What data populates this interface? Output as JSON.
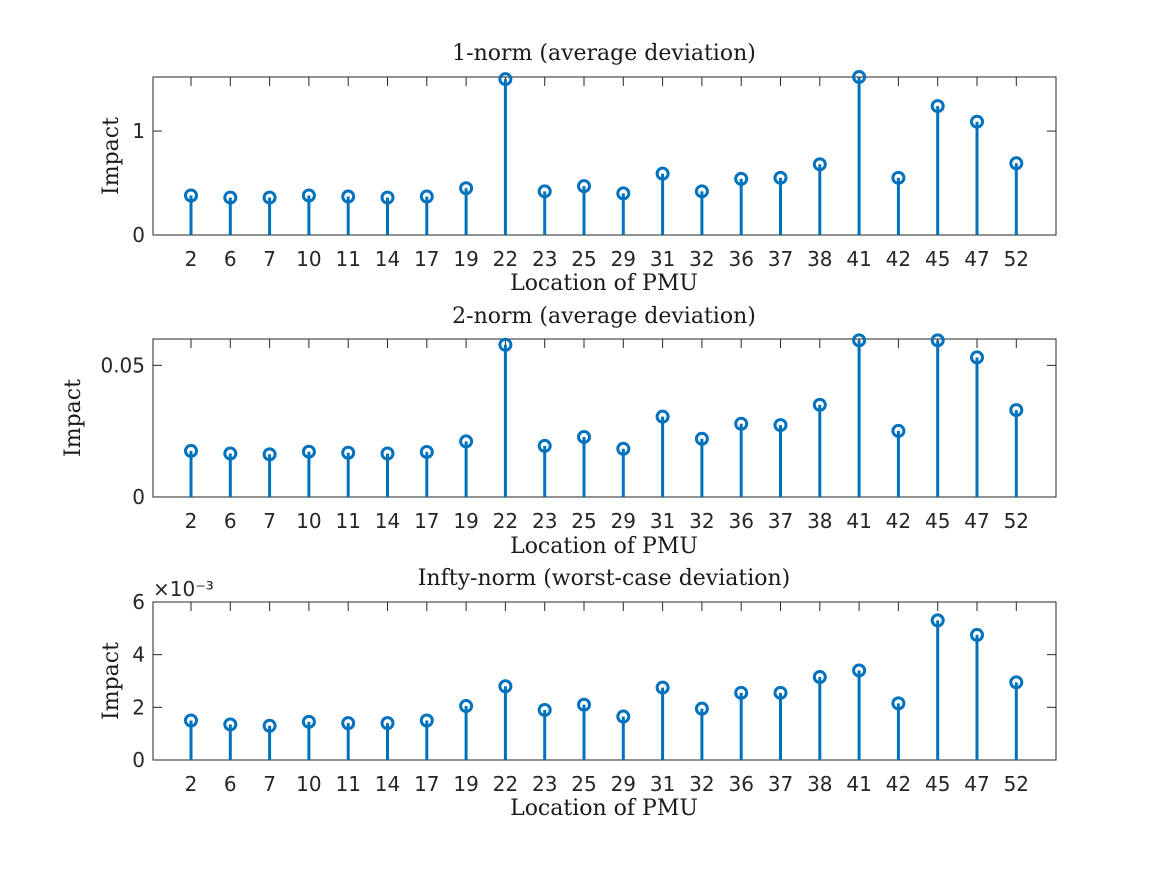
{
  "colors": {
    "series": "#0072bd",
    "axes": "#262626"
  },
  "chart_data": [
    {
      "type": "stem",
      "title": "1-norm (average deviation)",
      "xlabel": "Location of PMU",
      "ylabel": "Impact",
      "categories": [
        "2",
        "6",
        "7",
        "10",
        "11",
        "14",
        "17",
        "19",
        "22",
        "23",
        "25",
        "29",
        "31",
        "32",
        "36",
        "37",
        "38",
        "41",
        "42",
        "45",
        "47",
        "52"
      ],
      "values": [
        0.38,
        0.36,
        0.36,
        0.38,
        0.37,
        0.36,
        0.37,
        0.45,
        1.5,
        0.42,
        0.47,
        0.4,
        0.59,
        0.42,
        0.54,
        0.55,
        0.68,
        1.52,
        0.55,
        1.24,
        1.09,
        0.69
      ],
      "ylim": [
        0,
        1.52
      ],
      "yticks": [
        0,
        1
      ],
      "ytick_labels": [
        "0",
        "1"
      ],
      "exponent_label": ""
    },
    {
      "type": "stem",
      "title": "2-norm (average deviation)",
      "xlabel": "Location of PMU",
      "ylabel": "Impact",
      "categories": [
        "2",
        "6",
        "7",
        "10",
        "11",
        "14",
        "17",
        "19",
        "22",
        "23",
        "25",
        "29",
        "31",
        "32",
        "36",
        "37",
        "38",
        "41",
        "42",
        "45",
        "47",
        "52"
      ],
      "values": [
        0.0175,
        0.0165,
        0.0162,
        0.0172,
        0.0168,
        0.0165,
        0.0171,
        0.0211,
        0.0578,
        0.0194,
        0.0228,
        0.0183,
        0.0305,
        0.0221,
        0.0278,
        0.0273,
        0.035,
        0.0595,
        0.0251,
        0.0595,
        0.053,
        0.033
      ],
      "ylim": [
        0,
        0.06
      ],
      "yticks": [
        0,
        0.05
      ],
      "ytick_labels": [
        "0",
        "0.05"
      ],
      "exponent_label": ""
    },
    {
      "type": "stem",
      "title": "Infty-norm (worst-case deviation)",
      "xlabel": "Location of PMU",
      "ylabel": "Impact",
      "categories": [
        "2",
        "6",
        "7",
        "10",
        "11",
        "14",
        "17",
        "19",
        "22",
        "23",
        "25",
        "29",
        "31",
        "32",
        "36",
        "37",
        "38",
        "41",
        "42",
        "45",
        "47",
        "52"
      ],
      "values": [
        1.5,
        1.35,
        1.3,
        1.45,
        1.4,
        1.4,
        1.5,
        2.05,
        2.8,
        1.9,
        2.1,
        1.65,
        2.75,
        1.95,
        2.55,
        2.55,
        3.15,
        3.4,
        2.15,
        5.3,
        4.75,
        2.95
      ],
      "ylim": [
        0,
        6
      ],
      "yticks": [
        0,
        2,
        4,
        6
      ],
      "ytick_labels": [
        "0",
        "2",
        "4",
        "6"
      ],
      "exponent_label": "×10⁻³"
    }
  ]
}
